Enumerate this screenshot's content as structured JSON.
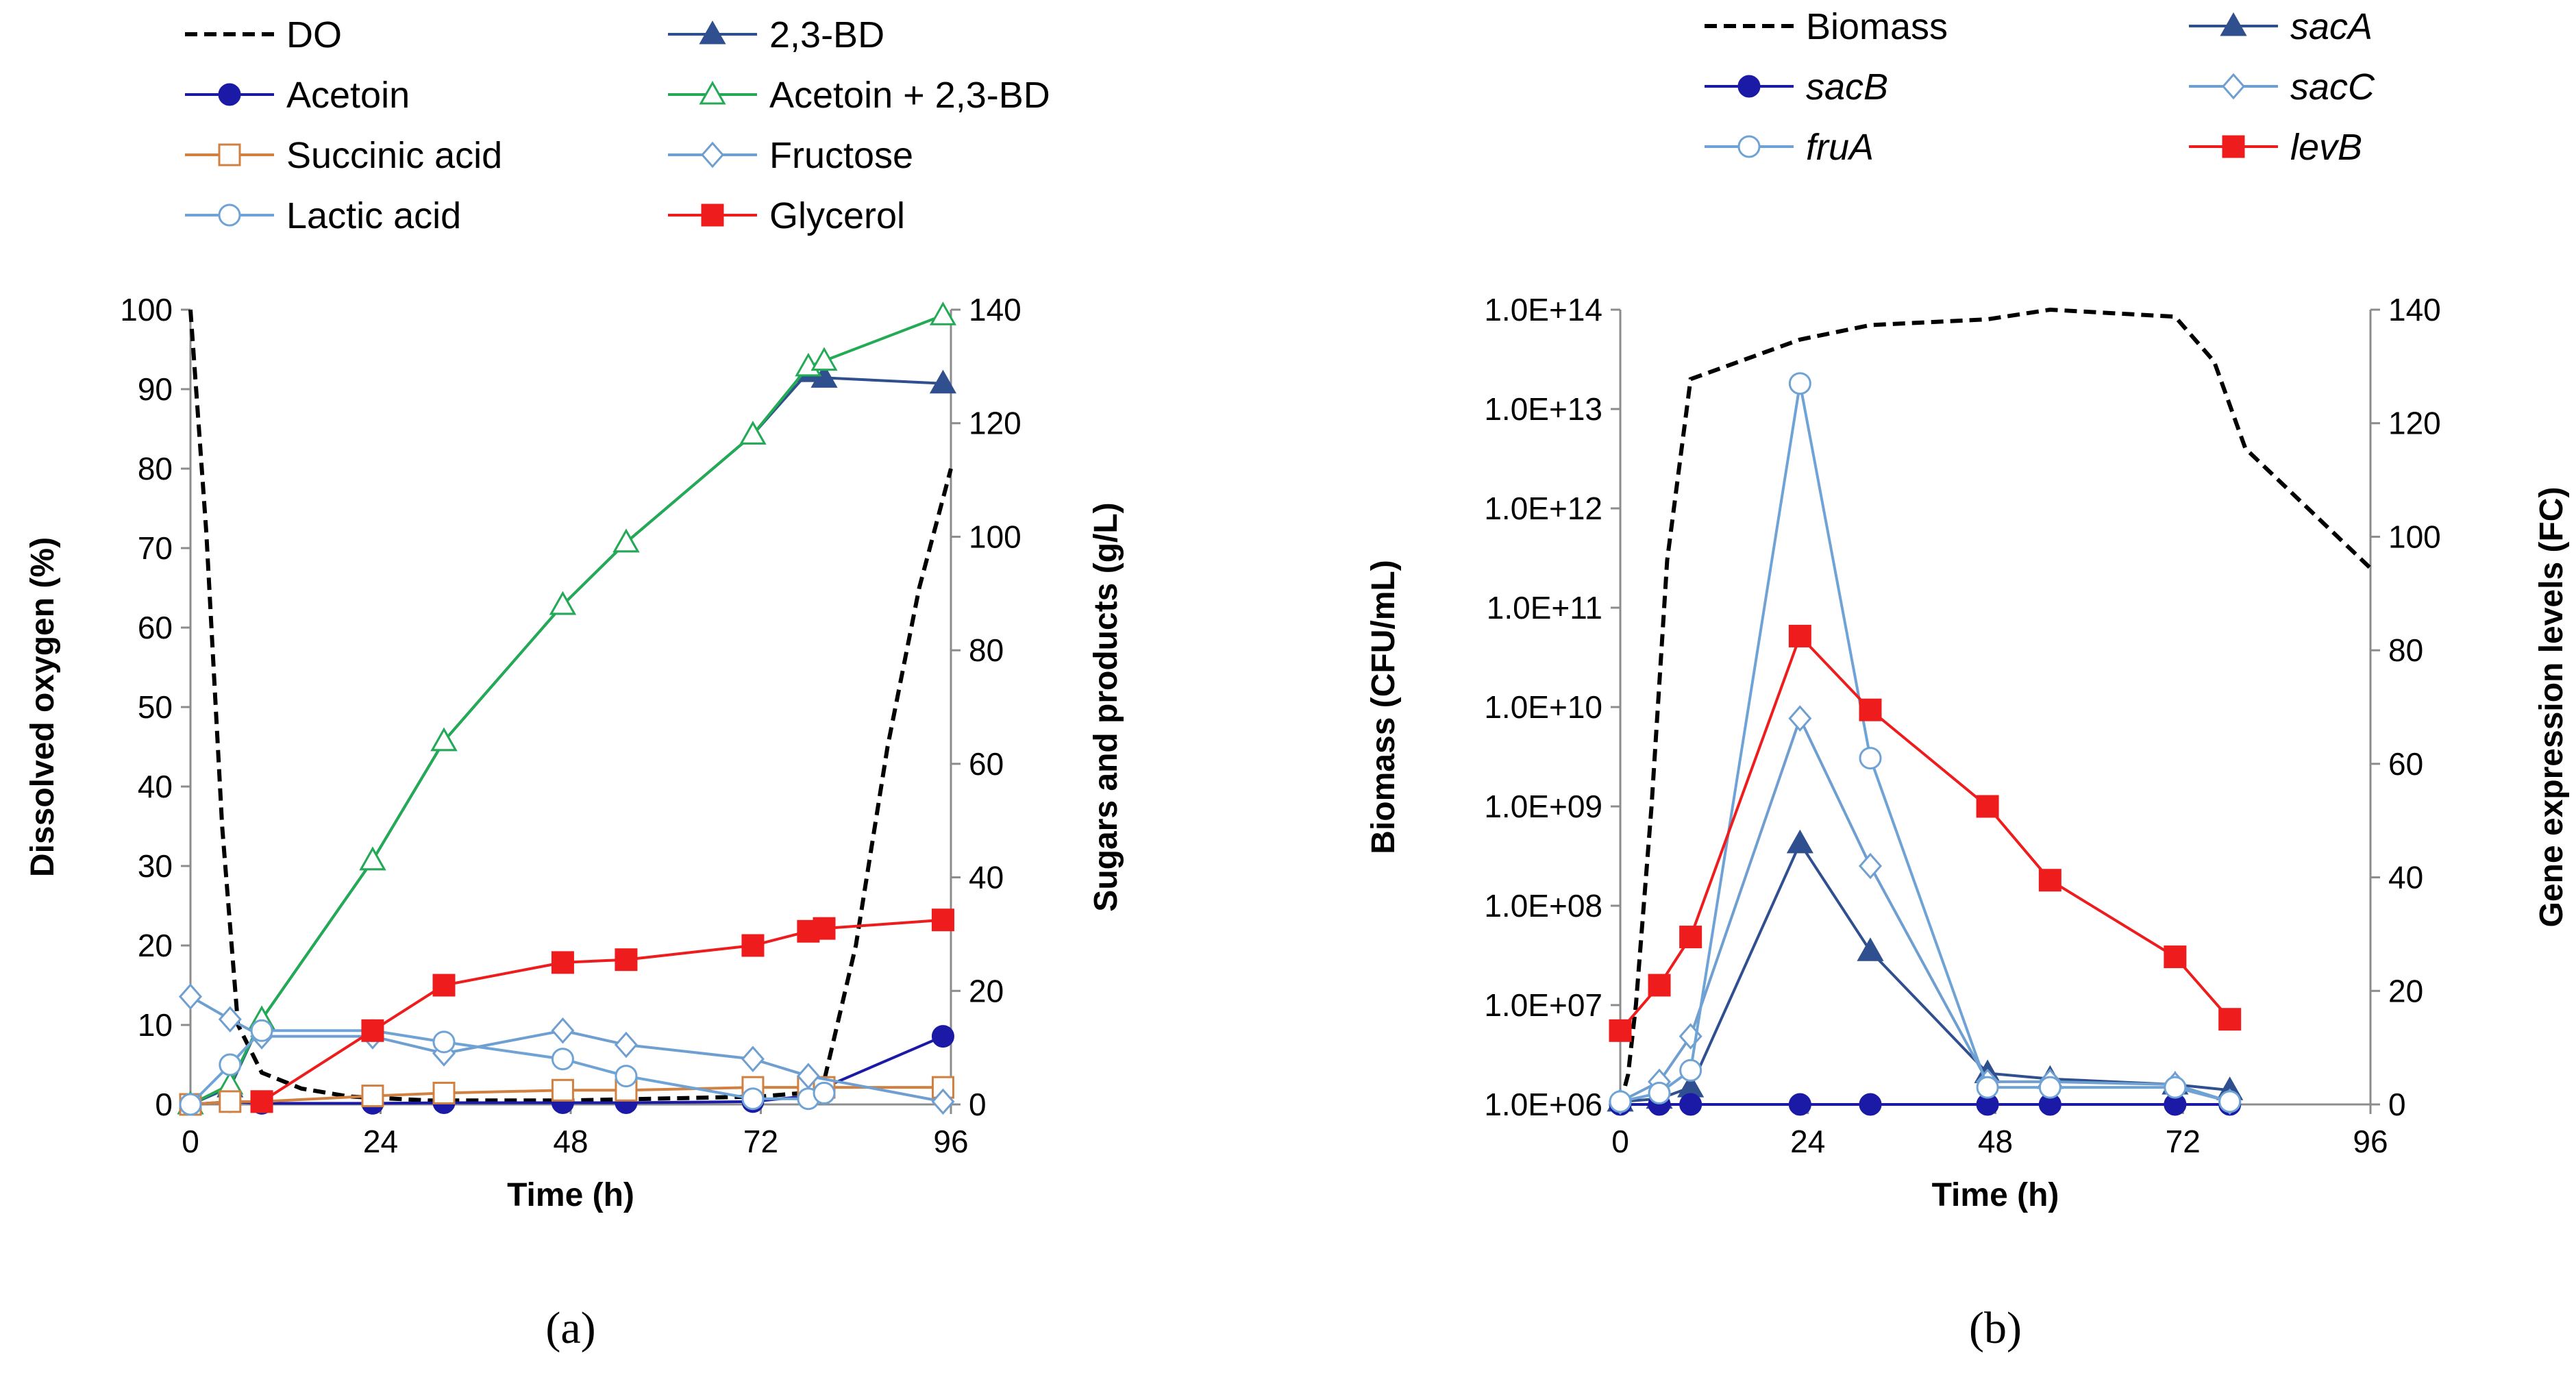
{
  "colors": {
    "do_line": "#000000",
    "bd23": "#2f4f8f",
    "acetoin": "#1a1aa6",
    "acetoin_bd": "#22aa55",
    "succinic": "#d08040",
    "fructose": "#6f9fd0",
    "lactic": "#6fa3d6",
    "glycerol": "#ee1c1c",
    "saca": "#2f4f8f",
    "sacb": "#1a1aa6",
    "sacc": "#6f9fd0",
    "frua": "#6fa3d6",
    "levb": "#ee1c1c"
  },
  "chart_data": [
    {
      "type": "line",
      "panel_label": "(a)",
      "xlabel": "Time (h)",
      "ylabel_left": "Dissolved oxygen (%)",
      "ylabel_right": "Sugars and products (g/L)",
      "xlim": [
        0,
        96
      ],
      "ylim_left": [
        0,
        100
      ],
      "ylim_right": [
        0,
        140
      ],
      "x_ticks": [
        "0",
        "24",
        "48",
        "72",
        "96"
      ],
      "y_ticks_left": [
        "0",
        "10",
        "20",
        "30",
        "40",
        "50",
        "60",
        "70",
        "80",
        "90",
        "100"
      ],
      "y_ticks_right": [
        "0",
        "20",
        "40",
        "60",
        "80",
        "100",
        "120",
        "140"
      ],
      "series": [
        {
          "name": "DO",
          "key": "do_line",
          "axis": "left",
          "marker": "none",
          "dashed": true,
          "x": [
            0,
            2,
            4,
            6,
            9,
            14,
            20,
            30,
            48,
            72,
            78,
            80,
            84,
            88,
            92,
            96
          ],
          "y": [
            100,
            72,
            35,
            10,
            4,
            2,
            1,
            0.5,
            0.5,
            1,
            1.5,
            3,
            20,
            45,
            65,
            80
          ]
        },
        {
          "name": "2,3-BD",
          "key": "bd23",
          "axis": "right",
          "marker": "tri-filled",
          "x": [
            0,
            5,
            9,
            23,
            32,
            47,
            55,
            71,
            78,
            80,
            95
          ],
          "y": [
            0,
            3,
            15,
            43,
            64,
            88,
            99,
            118,
            129,
            128,
            127
          ]
        },
        {
          "name": "Acetoin",
          "key": "acetoin",
          "axis": "right",
          "marker": "circle-filled",
          "x": [
            0,
            5,
            9,
            23,
            32,
            47,
            55,
            71,
            78,
            80,
            95
          ],
          "y": [
            0,
            0.5,
            0.2,
            0.2,
            0.3,
            0.3,
            0.3,
            0.5,
            1.5,
            3,
            12
          ]
        },
        {
          "name": "Acetoin + 2,3-BD",
          "key": "acetoin_bd",
          "axis": "right",
          "marker": "tri-open",
          "x": [
            0,
            5,
            9,
            23,
            32,
            47,
            55,
            71,
            78,
            80,
            95
          ],
          "y": [
            0,
            3.5,
            15,
            43,
            64,
            88,
            99,
            118,
            130,
            131,
            139
          ]
        },
        {
          "name": "Succinic acid",
          "key": "succinic",
          "axis": "right",
          "marker": "square-open",
          "x": [
            0,
            5,
            9,
            23,
            32,
            47,
            55,
            71,
            78,
            80,
            95
          ],
          "y": [
            0,
            0.5,
            0.5,
            1.5,
            2,
            2.5,
            2.5,
            3,
            3,
            3,
            3
          ]
        },
        {
          "name": "Fructose",
          "key": "fructose",
          "axis": "right",
          "marker": "diamond-open",
          "x": [
            0,
            5,
            9,
            23,
            32,
            47,
            55,
            71,
            78,
            95
          ],
          "y": [
            19,
            15,
            12,
            12,
            9,
            13,
            10.5,
            8,
            5,
            0.5
          ]
        },
        {
          "name": "Lactic acid",
          "key": "lactic",
          "axis": "right",
          "marker": "circle-open",
          "x": [
            0,
            5,
            9,
            23,
            32,
            47,
            55,
            71,
            78,
            80
          ],
          "y": [
            0,
            7,
            13,
            13,
            11,
            8,
            5,
            1,
            1,
            2
          ]
        },
        {
          "name": "Glycerol",
          "key": "glycerol",
          "axis": "right",
          "marker": "square-filled",
          "x": [
            9,
            23,
            32,
            47,
            55,
            71,
            78,
            80,
            95
          ],
          "y": [
            0.5,
            13,
            21,
            25,
            25.5,
            28,
            30.5,
            31,
            32.5
          ]
        }
      ],
      "legend": [
        {
          "label": "DO",
          "key": "do_line",
          "marker": "none",
          "dashed": true
        },
        {
          "label": "2,3-BD",
          "key": "bd23",
          "marker": "tri-filled"
        },
        {
          "label": "Acetoin",
          "key": "acetoin",
          "marker": "circle-filled"
        },
        {
          "label": "Acetoin + 2,3-BD",
          "key": "acetoin_bd",
          "marker": "tri-open"
        },
        {
          "label": "Succinic acid",
          "key": "succinic",
          "marker": "square-open"
        },
        {
          "label": "Fructose",
          "key": "fructose",
          "marker": "diamond-open"
        },
        {
          "label": "Lactic acid",
          "key": "lactic",
          "marker": "circle-open"
        },
        {
          "label": "Glycerol",
          "key": "glycerol",
          "marker": "square-filled"
        }
      ]
    },
    {
      "type": "line",
      "panel_label": "(b)",
      "xlabel": "Time (h)",
      "ylabel_left": "Biomass (CFU/mL)",
      "ylabel_right": "Gene expression levels (FC)",
      "xlim": [
        0,
        96
      ],
      "ylim_left_log10": [
        6,
        14
      ],
      "ylim_right": [
        0,
        140
      ],
      "x_ticks": [
        "0",
        "24",
        "48",
        "72",
        "96"
      ],
      "y_ticks_left": [
        "1.0E+06",
        "1.0E+07",
        "1.0E+08",
        "1.0E+09",
        "1.0E+10",
        "1.0E+11",
        "1.0E+12",
        "1.0E+13",
        "1.0E+14"
      ],
      "y_ticks_right": [
        "0",
        "20",
        "40",
        "60",
        "80",
        "100",
        "120",
        "140"
      ],
      "series": [
        {
          "name": "Biomass",
          "key": "do_line",
          "axis": "left_log",
          "marker": "none",
          "dashed": true,
          "x": [
            0,
            1,
            2,
            4,
            6,
            9,
            23,
            32,
            47,
            55,
            71,
            76,
            80,
            96
          ],
          "y": [
            1000000.0,
            2000000.0,
            10000000.0,
            1000000000.0,
            300000000000.0,
            20000000000000.0,
            50000000000000.0,
            70000000000000.0,
            80000000000000.0,
            100000000000000.0,
            85000000000000.0,
            30000000000000.0,
            4000000000000.0,
            250000000000.0
          ]
        },
        {
          "name": "sacA",
          "key": "saca",
          "axis": "right",
          "marker": "tri-filled",
          "x": [
            0,
            5,
            9,
            23,
            32,
            47,
            55,
            71,
            78
          ],
          "y": [
            0.5,
            1,
            3,
            46,
            27,
            5.5,
            4.5,
            3.5,
            2.5
          ]
        },
        {
          "name": "sacB",
          "key": "sacb",
          "axis": "right",
          "marker": "circle-filled",
          "x": [
            0,
            5,
            9,
            23,
            32,
            47,
            55,
            71,
            78
          ],
          "y": [
            0,
            0,
            0,
            0,
            0,
            0,
            0,
            0,
            0
          ]
        },
        {
          "name": "sacC",
          "key": "sacc",
          "axis": "right",
          "marker": "diamond-open",
          "x": [
            0,
            5,
            9,
            23,
            32,
            47,
            55,
            71,
            78
          ],
          "y": [
            0.5,
            4,
            12,
            68,
            42,
            4,
            4,
            3.5,
            0.5
          ]
        },
        {
          "name": "fruA",
          "key": "frua",
          "axis": "right",
          "marker": "circle-open",
          "x": [
            0,
            5,
            9,
            23,
            32,
            47,
            55,
            71,
            78
          ],
          "y": [
            0.5,
            2,
            6,
            127,
            61,
            3,
            3,
            3,
            0.5
          ]
        },
        {
          "name": "levB",
          "key": "levb",
          "axis": "right",
          "marker": "square-filled",
          "x": [
            0,
            5,
            9,
            23,
            32,
            47,
            55,
            71,
            78
          ],
          "y": [
            13,
            21,
            29.5,
            82.5,
            69.5,
            52.5,
            39.5,
            26,
            15
          ]
        }
      ],
      "legend": [
        {
          "label": "Biomass",
          "key": "do_line",
          "marker": "none",
          "dashed": true,
          "italic": false
        },
        {
          "label": "sacA",
          "key": "saca",
          "marker": "tri-filled",
          "italic": true
        },
        {
          "label": "sacB",
          "key": "sacb",
          "marker": "circle-filled",
          "italic": true
        },
        {
          "label": "sacC",
          "key": "sacc",
          "marker": "diamond-open",
          "italic": true
        },
        {
          "label": "fruA",
          "key": "frua",
          "marker": "circle-open",
          "italic": true
        },
        {
          "label": "levB",
          "key": "levb",
          "marker": "square-filled",
          "italic": true
        }
      ]
    }
  ]
}
